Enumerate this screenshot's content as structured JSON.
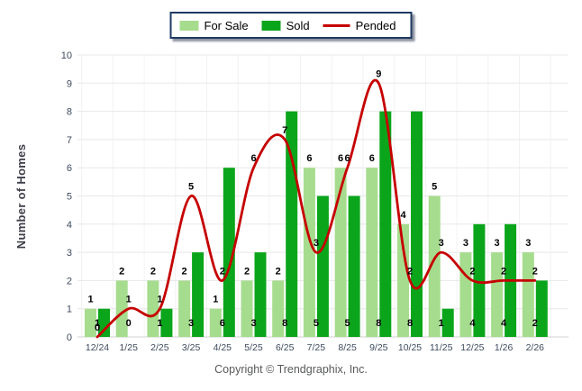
{
  "legend": {
    "items": [
      {
        "label": "For Sale",
        "swatch": "rect",
        "color": "#a6dc8e"
      },
      {
        "label": "Sold",
        "swatch": "rect",
        "color": "#0ba51b"
      },
      {
        "label": "Pended",
        "swatch": "line",
        "color": "#c60000"
      }
    ]
  },
  "footer": {
    "copyright": "Copyright © Trendgraphix, Inc."
  },
  "chart_data": {
    "type": "bar",
    "title": "",
    "xlabel": "",
    "ylabel": "Number of Homes",
    "categories": [
      "12/24",
      "1/25",
      "2/25",
      "3/25",
      "4/25",
      "5/25",
      "6/25",
      "7/25",
      "8/25",
      "9/25",
      "10/25",
      "11/25",
      "12/25",
      "1/26",
      "2/26"
    ],
    "series": [
      {
        "name": "For Sale",
        "type": "bar",
        "color": "#a6dc8e",
        "values": [
          1,
          2,
          2,
          2,
          1,
          2,
          2,
          6,
          6,
          6,
          4,
          5,
          3,
          3,
          3
        ]
      },
      {
        "name": "Sold",
        "type": "bar",
        "color": "#0ba51b",
        "values": [
          1,
          0,
          1,
          3,
          6,
          3,
          8,
          5,
          5,
          8,
          8,
          1,
          4,
          4,
          2
        ]
      },
      {
        "name": "Pended",
        "type": "line",
        "color": "#c60000",
        "values": [
          0,
          1,
          1,
          5,
          2,
          6,
          7,
          3,
          6,
          9,
          2,
          3,
          2,
          2,
          2
        ]
      }
    ],
    "ylim": [
      0,
      10
    ],
    "yticks": [
      0,
      1,
      2,
      3,
      4,
      5,
      6,
      7,
      8,
      9,
      10
    ],
    "grid": true,
    "legend_position": "top",
    "value_labels": true
  },
  "style": {
    "grid_color": "#e8e8e8",
    "vgrid_color": "#f2f2f2",
    "axis_line_color": "#d0d0d0",
    "tick_label_color": "#3d4a5c",
    "value_label_color": "#000000",
    "y_title_color": "#3f3f4b"
  }
}
